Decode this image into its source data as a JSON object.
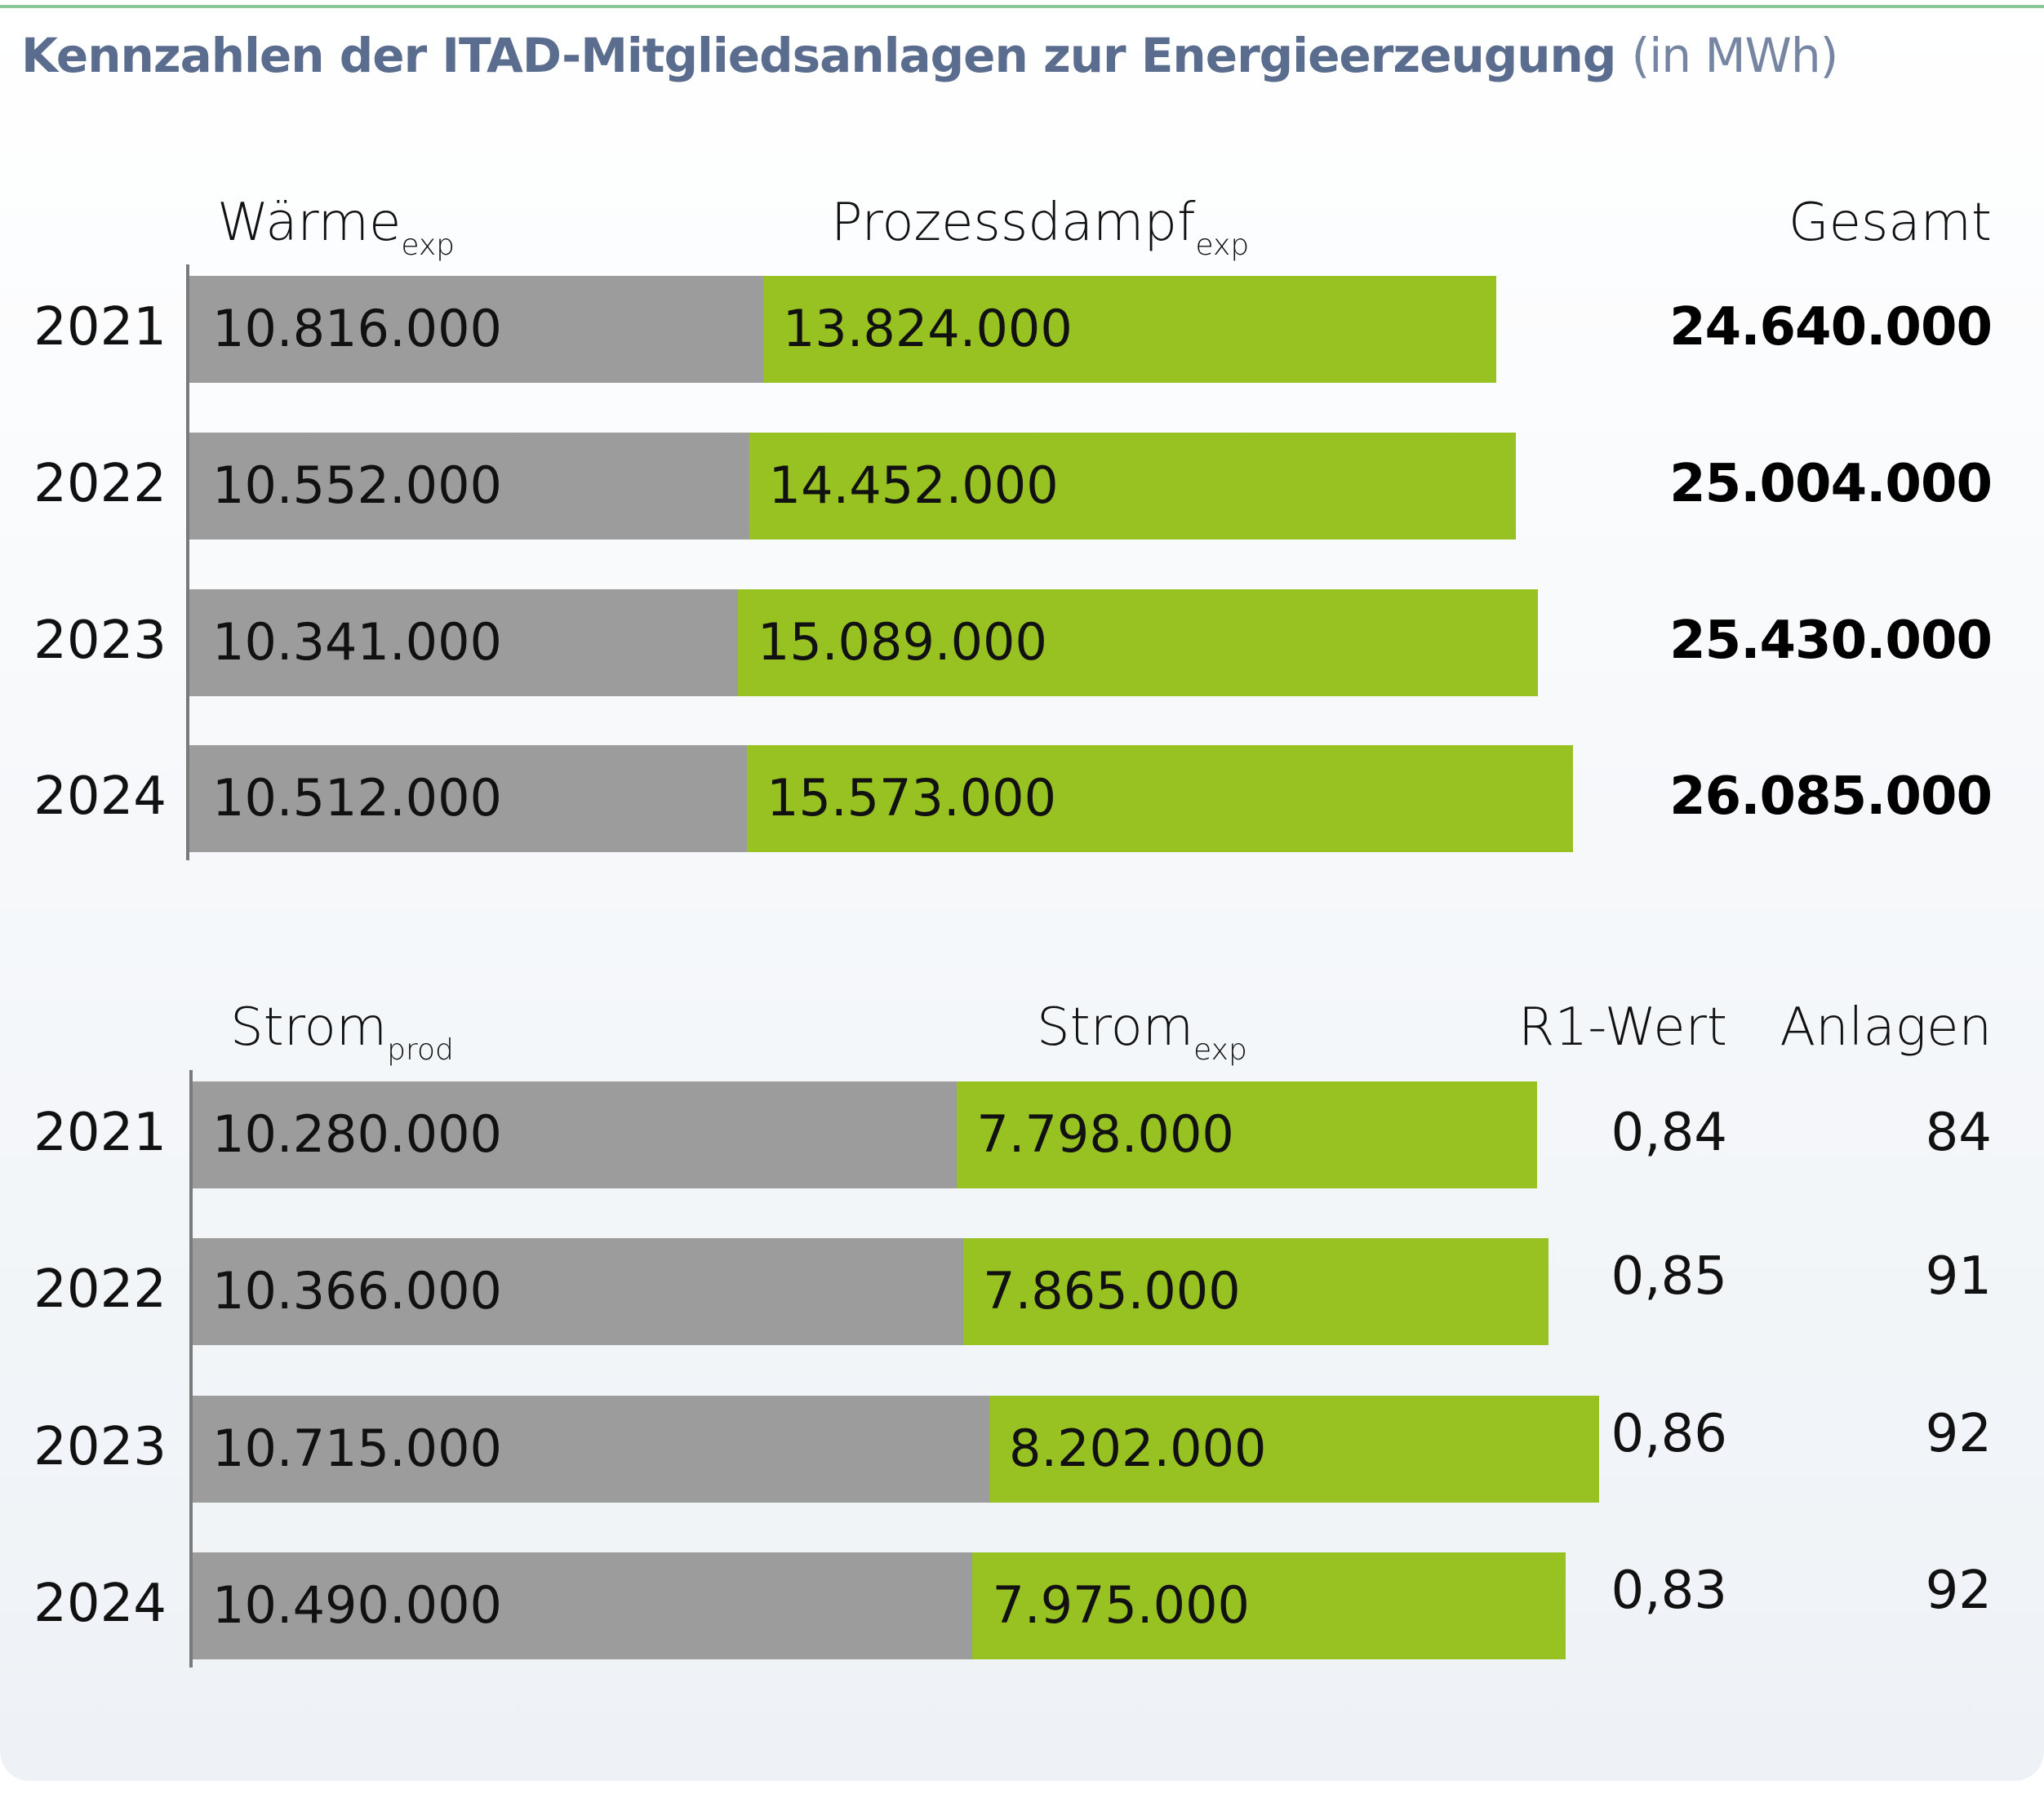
{
  "title": "Kennzahlen der ITAD-Mitgliedsanlagen zur Energieerzeugung",
  "title_unit": "(in MWh)",
  "colors": {
    "gray": "#9c9c9c",
    "green": "#98c222",
    "title": "#5b6d8e",
    "accent_line": "#8cc796"
  },
  "chart_data": [
    {
      "type": "bar",
      "orientation": "horizontal",
      "stacked": true,
      "title": "Wärme und Prozessdampf (in MWh)",
      "categories": [
        "2021",
        "2022",
        "2023",
        "2024"
      ],
      "series": [
        {
          "name": "Wärme",
          "subscript": "exp",
          "values": [
            10816000,
            10552000,
            10341000,
            10512000
          ],
          "labels": [
            "10.816.000",
            "10.552.000",
            "10.341.000",
            "10.512.000"
          ],
          "color": "#9c9c9c"
        },
        {
          "name": "Prozessdampf",
          "subscript": "exp",
          "values": [
            13824000,
            14452000,
            15089000,
            15573000
          ],
          "labels": [
            "13.824.000",
            "14.452.000",
            "15.089.000",
            "15.573.000"
          ],
          "color": "#98c222"
        }
      ],
      "extra_columns": [
        {
          "header": "Gesamt",
          "values": [
            "24.640.000",
            "25.004.000",
            "25.430.000",
            "26.085.000"
          ]
        }
      ],
      "grid": false
    },
    {
      "type": "bar",
      "orientation": "horizontal",
      "stacked": true,
      "title": "Strom (in MWh)",
      "categories": [
        "2021",
        "2022",
        "2023",
        "2024"
      ],
      "series": [
        {
          "name": "Strom",
          "subscript": "prod",
          "values": [
            10280000,
            10366000,
            10715000,
            10490000
          ],
          "labels": [
            "10.280.000",
            "10.366.000",
            "10.715.000",
            "10.490.000"
          ],
          "color": "#9c9c9c"
        },
        {
          "name": "Strom",
          "subscript": "exp",
          "values": [
            7798000,
            7865000,
            8202000,
            7975000
          ],
          "labels": [
            "7.798.000",
            "7.865.000",
            "8.202.000",
            "7.975.000"
          ],
          "color": "#98c222"
        }
      ],
      "extra_columns": [
        {
          "header": "R1-Wert",
          "values": [
            "0,84",
            "0,85",
            "0,86",
            "0,83"
          ]
        },
        {
          "header": "Anlagen",
          "values": [
            "84",
            "91",
            "92",
            "92"
          ]
        }
      ],
      "grid": false
    }
  ]
}
